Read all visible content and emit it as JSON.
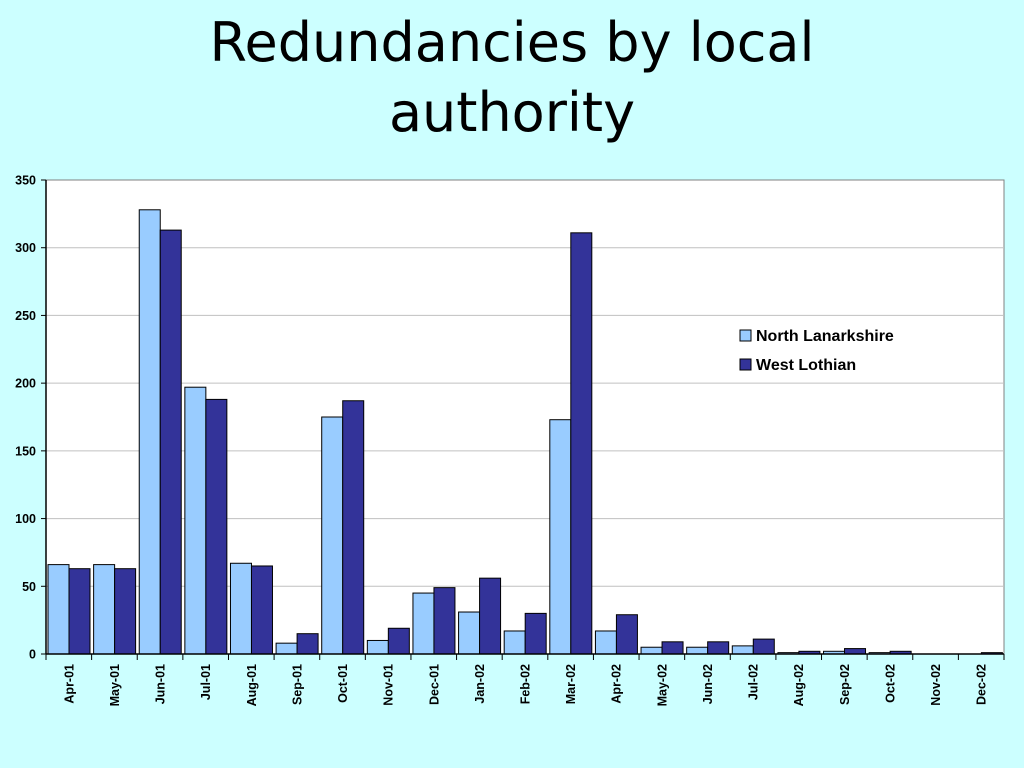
{
  "slide": {
    "title_line1": "Redundancies by local",
    "title_line2": "authority"
  },
  "chart_data": {
    "type": "bar",
    "title": "",
    "xlabel": "",
    "ylabel": "",
    "ylim": [
      0,
      350
    ],
    "yticks": [
      0,
      50,
      100,
      150,
      200,
      250,
      300,
      350
    ],
    "grid": true,
    "legend_position": "right",
    "categories": [
      "Apr-01",
      "May-01",
      "Jun-01",
      "Jul-01",
      "Aug-01",
      "Sep-01",
      "Oct-01",
      "Nov-01",
      "Dec-01",
      "Jan-02",
      "Feb-02",
      "Mar-02",
      "Apr-02",
      "May-02",
      "Jun-02",
      "Jul-02",
      "Aug-02",
      "Sep-02",
      "Oct-02",
      "Nov-02",
      "Dec-02"
    ],
    "series": [
      {
        "name": "North Lanarkshire",
        "color": "#99ccff",
        "values": [
          66,
          66,
          328,
          197,
          67,
          8,
          175,
          10,
          45,
          31,
          17,
          173,
          17,
          5,
          5,
          6,
          1,
          2,
          1,
          0,
          0
        ]
      },
      {
        "name": "West Lothian",
        "color": "#333399",
        "values": [
          63,
          63,
          313,
          188,
          65,
          15,
          187,
          19,
          49,
          56,
          30,
          311,
          29,
          9,
          9,
          11,
          2,
          4,
          2,
          0,
          1
        ]
      }
    ],
    "colors": {
      "plot_background": "#ffffff",
      "gridline": "#c0c0c0",
      "axis": "#000000"
    }
  }
}
